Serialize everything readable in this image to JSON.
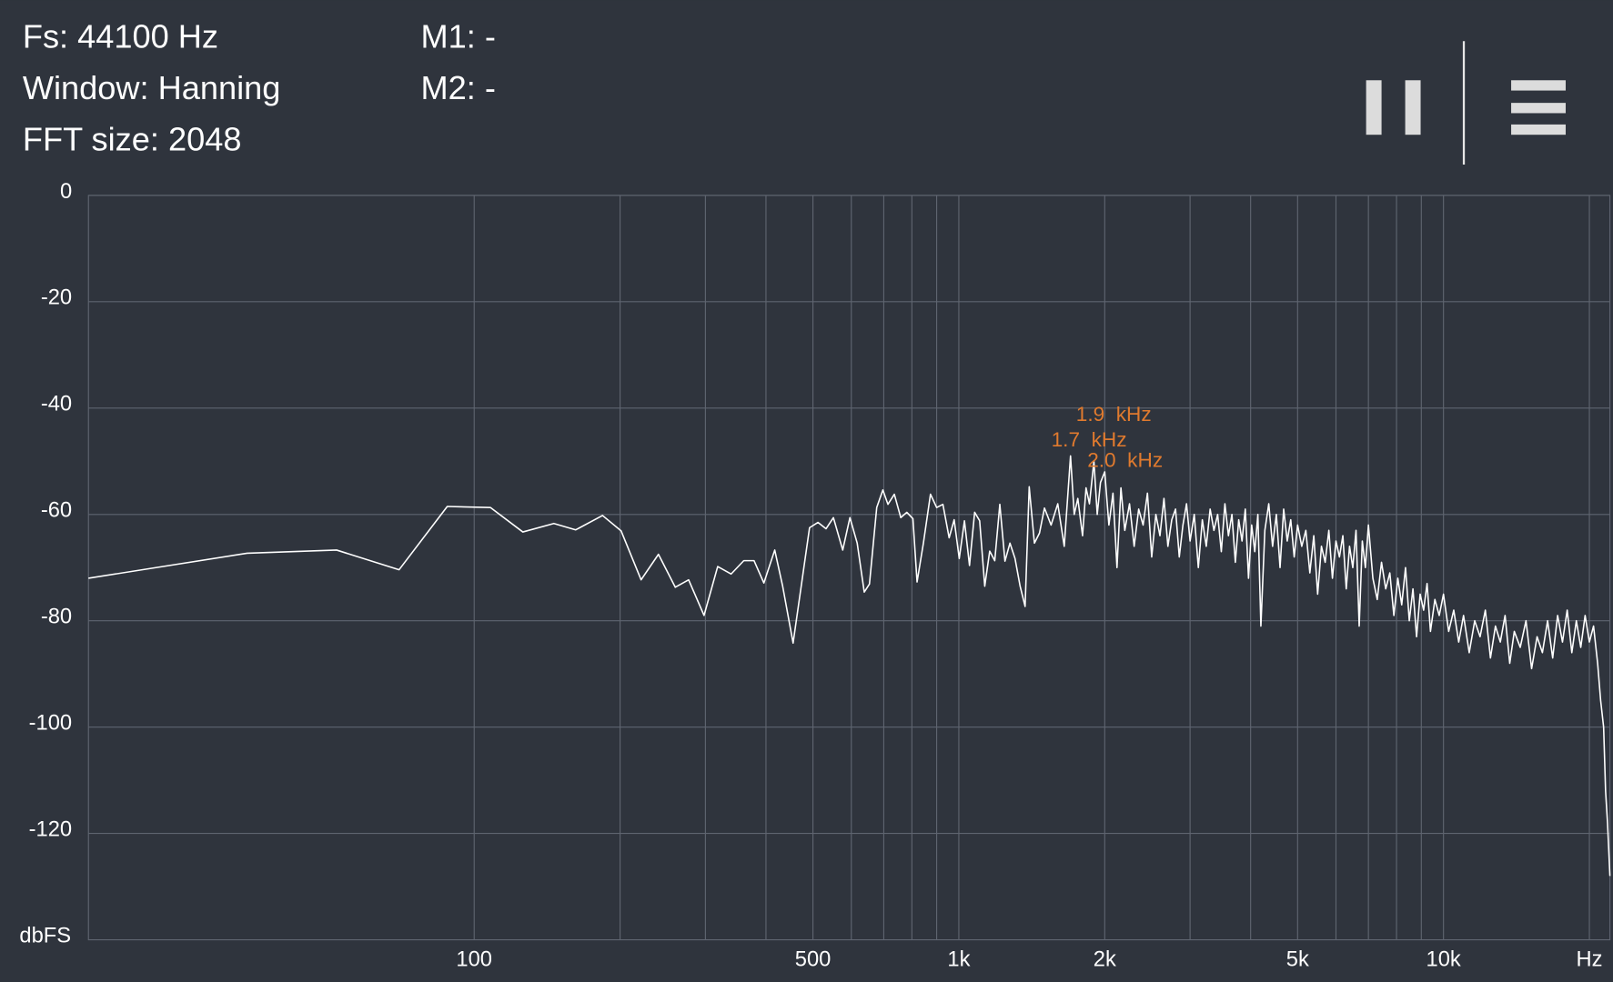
{
  "header": {
    "sample_rate": "Fs: 44100 Hz",
    "window": "Window: Hanning",
    "fft_size": "FFT size: 2048",
    "marker1": "M1: -",
    "marker2": "M2: -"
  },
  "chart_data": {
    "type": "line",
    "log_x": true,
    "grid": true,
    "color": "#ffffff",
    "annotation_color": "#e07a2e",
    "x_label": "Hz",
    "y_label": "dbFS",
    "xlim": [
      16,
      22050
    ],
    "ylim": [
      -140,
      0
    ],
    "xticks": [
      100,
      500,
      {
        "value": 1000,
        "label": "1k"
      },
      {
        "value": 2000,
        "label": "2k"
      },
      {
        "value": 5000,
        "label": "5k"
      },
      {
        "value": 10000,
        "label": "10k"
      }
    ],
    "xgrid": [
      200,
      300,
      400,
      600,
      700,
      800,
      900,
      3000,
      4000,
      6000,
      7000,
      8000,
      9000,
      20000
    ],
    "yticks": [
      0,
      -20,
      -40,
      -60,
      -80,
      -100,
      -120
    ],
    "annotations": [
      "1.9  kHz",
      "1.7  kHz",
      "2.0  kHz"
    ],
    "x": [
      16,
      34,
      52,
      70,
      88,
      108,
      126,
      146,
      162,
      184,
      201,
      221,
      240,
      260,
      277,
      298,
      318,
      339,
      360,
      378,
      396,
      417,
      433,
      455,
      492,
      512,
      532,
      551,
      576,
      596,
      617,
      638,
      654,
      677,
      697,
      714,
      736,
      759,
      781,
      804,
      820,
      845,
      874,
      900,
      927,
      955,
      978,
      1002,
      1027,
      1052,
      1078,
      1104,
      1131,
      1158,
      1186,
      1215,
      1245,
      1275,
      1306,
      1338,
      1370,
      1397,
      1432,
      1467,
      1502,
      1550,
      1600,
      1650,
      1700,
      1730,
      1760,
      1800,
      1830,
      1860,
      1900,
      1930,
      1960,
      2000,
      2040,
      2080,
      2120,
      2160,
      2200,
      2250,
      2300,
      2350,
      2400,
      2450,
      2500,
      2550,
      2600,
      2650,
      2700,
      2750,
      2800,
      2850,
      2900,
      2950,
      3000,
      3060,
      3120,
      3180,
      3240,
      3300,
      3360,
      3420,
      3480,
      3540,
      3600,
      3660,
      3720,
      3780,
      3840,
      3900,
      3960,
      4020,
      4080,
      4140,
      4200,
      4280,
      4360,
      4440,
      4520,
      4600,
      4680,
      4760,
      4840,
      4920,
      5000,
      5100,
      5200,
      5300,
      5400,
      5500,
      5600,
      5700,
      5800,
      5900,
      6000,
      6100,
      6200,
      6300,
      6400,
      6500,
      6600,
      6700,
      6800,
      6900,
      7000,
      7150,
      7300,
      7450,
      7600,
      7750,
      7900,
      8050,
      8200,
      8350,
      8500,
      8650,
      8800,
      8950,
      9100,
      9250,
      9400,
      9600,
      9800,
      10000,
      10250,
      10500,
      10750,
      11000,
      11300,
      11600,
      11900,
      12200,
      12500,
      12800,
      13100,
      13400,
      13700,
      14000,
      14400,
      14800,
      15200,
      15600,
      16000,
      16400,
      16800,
      17200,
      17600,
      18000,
      18400,
      18800,
      19200,
      19600,
      20000,
      20400,
      20800,
      21100,
      21400,
      21600,
      21800,
      22050
    ],
    "values": [
      -72,
      -67.3,
      -66.7,
      -70.4,
      -58.5,
      -58.7,
      -63.3,
      -61.7,
      -62.9,
      -60.2,
      -63.1,
      -72.3,
      -67.5,
      -73.7,
      -72.3,
      -79,
      -69.8,
      -71.2,
      -68.7,
      -68.7,
      -72.9,
      -66.7,
      -73.5,
      -84.2,
      -62.5,
      -61.5,
      -62.7,
      -60.6,
      -66.7,
      -60.6,
      -65.4,
      -74.6,
      -73.1,
      -58.7,
      -55.4,
      -58.1,
      -56.2,
      -60.6,
      -59.6,
      -60.8,
      -72.7,
      -65.4,
      -56.2,
      -58.7,
      -58.1,
      -64.4,
      -61,
      -68.3,
      -61.2,
      -69.6,
      -59.6,
      -61.2,
      -73.5,
      -66.9,
      -68.7,
      -58.1,
      -68.8,
      -65.4,
      -68.3,
      -73.5,
      -77.3,
      -54.8,
      -65.4,
      -63.5,
      -58.8,
      -62,
      -58,
      -66,
      -49,
      -60,
      -57,
      -64,
      -55,
      -58,
      -50,
      -60,
      -54,
      -52,
      -62,
      -56,
      -70,
      -55,
      -63,
      -58,
      -66,
      -59,
      -62,
      -56,
      -68,
      -60,
      -64,
      -57,
      -66,
      -61,
      -59,
      -68,
      -62,
      -58,
      -65,
      -60,
      -70,
      -61,
      -66,
      -59,
      -63,
      -60,
      -67,
      -58,
      -64,
      -60,
      -69,
      -61,
      -65,
      -59,
      -72,
      -62,
      -67,
      -60,
      -81,
      -63,
      -58,
      -66,
      -60,
      -70,
      -59,
      -65,
      -61,
      -68,
      -62,
      -66,
      -63,
      -71,
      -64,
      -75,
      -66,
      -69,
      -63,
      -72,
      -65,
      -68,
      -64,
      -74,
      -66,
      -70,
      -63,
      -81,
      -65,
      -70,
      -62,
      -72,
      -76,
      -69,
      -74,
      -71,
      -79,
      -72,
      -77,
      -70,
      -80,
      -74,
      -83,
      -75,
      -78,
      -73,
      -82,
      -76,
      -79,
      -75,
      -82,
      -78,
      -84,
      -79,
      -86,
      -80,
      -83,
      -78,
      -87,
      -81,
      -84,
      -79,
      -88,
      -82,
      -85,
      -80,
      -89,
      -83,
      -86,
      -80,
      -87,
      -79,
      -84,
      -78,
      -86,
      -80,
      -85,
      -79,
      -84,
      -81,
      -88,
      -95,
      -100,
      -112,
      -118,
      -128
    ]
  }
}
